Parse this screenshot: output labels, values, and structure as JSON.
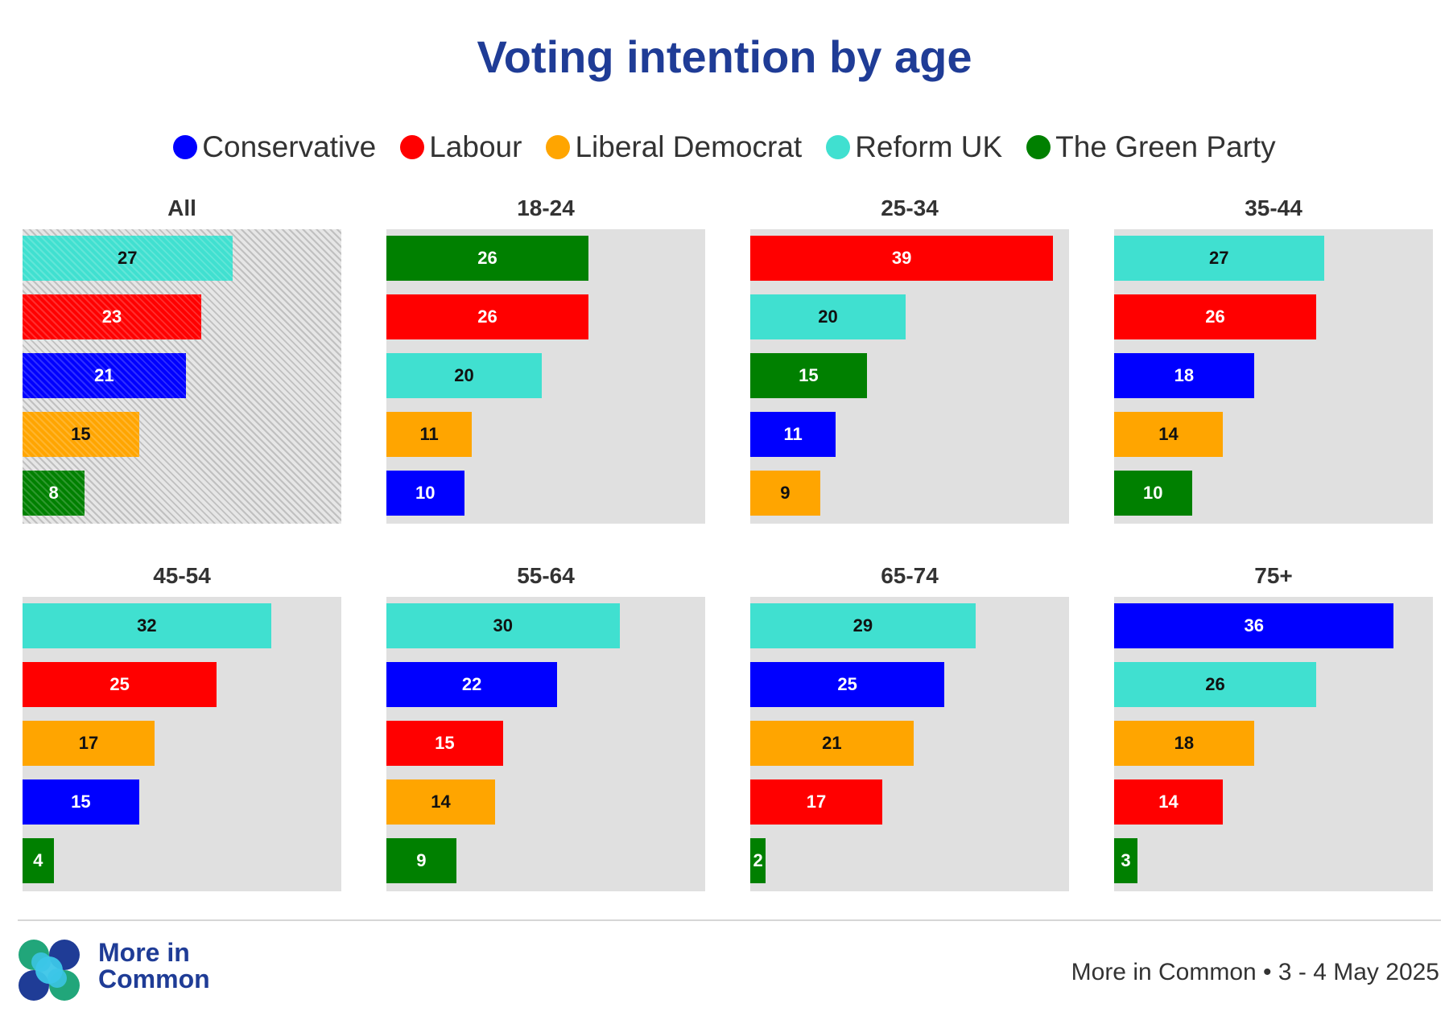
{
  "colors": {
    "Conservative": "#0000ff",
    "Labour": "#ff0000",
    "Liberal Democrat": "#ffa500",
    "Reform UK": "#40e0d0",
    "The Green Party": "#008000"
  },
  "brand": {
    "name_line1": "More in",
    "name_line2": "Common"
  },
  "source": "More in Common • 3 - 4 May 2025",
  "chart_data": {
    "type": "bar",
    "orientation": "horizontal",
    "title": "Voting intention by age",
    "legend": [
      "Conservative",
      "Labour",
      "Liberal Democrat",
      "Reform UK",
      "The Green Party"
    ],
    "legend_position": "top",
    "xlim": [
      0,
      40
    ],
    "grid": false,
    "panels": [
      {
        "title": "All",
        "hatched": true,
        "bars": [
          {
            "party": "Reform UK",
            "value": 27
          },
          {
            "party": "Labour",
            "value": 23
          },
          {
            "party": "Conservative",
            "value": 21
          },
          {
            "party": "Liberal Democrat",
            "value": 15
          },
          {
            "party": "The Green Party",
            "value": 8
          }
        ]
      },
      {
        "title": "18-24",
        "hatched": false,
        "bars": [
          {
            "party": "The Green Party",
            "value": 26
          },
          {
            "party": "Labour",
            "value": 26
          },
          {
            "party": "Reform UK",
            "value": 20
          },
          {
            "party": "Liberal Democrat",
            "value": 11
          },
          {
            "party": "Conservative",
            "value": 10
          }
        ]
      },
      {
        "title": "25-34",
        "hatched": false,
        "bars": [
          {
            "party": "Labour",
            "value": 39
          },
          {
            "party": "Reform UK",
            "value": 20
          },
          {
            "party": "The Green Party",
            "value": 15
          },
          {
            "party": "Conservative",
            "value": 11
          },
          {
            "party": "Liberal Democrat",
            "value": 9
          }
        ]
      },
      {
        "title": "35-44",
        "hatched": false,
        "bars": [
          {
            "party": "Reform UK",
            "value": 27
          },
          {
            "party": "Labour",
            "value": 26
          },
          {
            "party": "Conservative",
            "value": 18
          },
          {
            "party": "Liberal Democrat",
            "value": 14
          },
          {
            "party": "The Green Party",
            "value": 10
          }
        ]
      },
      {
        "title": "45-54",
        "hatched": false,
        "bars": [
          {
            "party": "Reform UK",
            "value": 32
          },
          {
            "party": "Labour",
            "value": 25
          },
          {
            "party": "Liberal Democrat",
            "value": 17
          },
          {
            "party": "Conservative",
            "value": 15
          },
          {
            "party": "The Green Party",
            "value": 4
          }
        ]
      },
      {
        "title": "55-64",
        "hatched": false,
        "bars": [
          {
            "party": "Reform UK",
            "value": 30
          },
          {
            "party": "Conservative",
            "value": 22
          },
          {
            "party": "Labour",
            "value": 15
          },
          {
            "party": "Liberal Democrat",
            "value": 14
          },
          {
            "party": "The Green Party",
            "value": 9
          }
        ]
      },
      {
        "title": "65-74",
        "hatched": false,
        "bars": [
          {
            "party": "Reform UK",
            "value": 29
          },
          {
            "party": "Conservative",
            "value": 25
          },
          {
            "party": "Liberal Democrat",
            "value": 21
          },
          {
            "party": "Labour",
            "value": 17
          },
          {
            "party": "The Green Party",
            "value": 2
          }
        ]
      },
      {
        "title": "75+",
        "hatched": false,
        "bars": [
          {
            "party": "Conservative",
            "value": 36
          },
          {
            "party": "Reform UK",
            "value": 26
          },
          {
            "party": "Liberal Democrat",
            "value": 18
          },
          {
            "party": "Labour",
            "value": 14
          },
          {
            "party": "The Green Party",
            "value": 3
          }
        ]
      }
    ]
  }
}
